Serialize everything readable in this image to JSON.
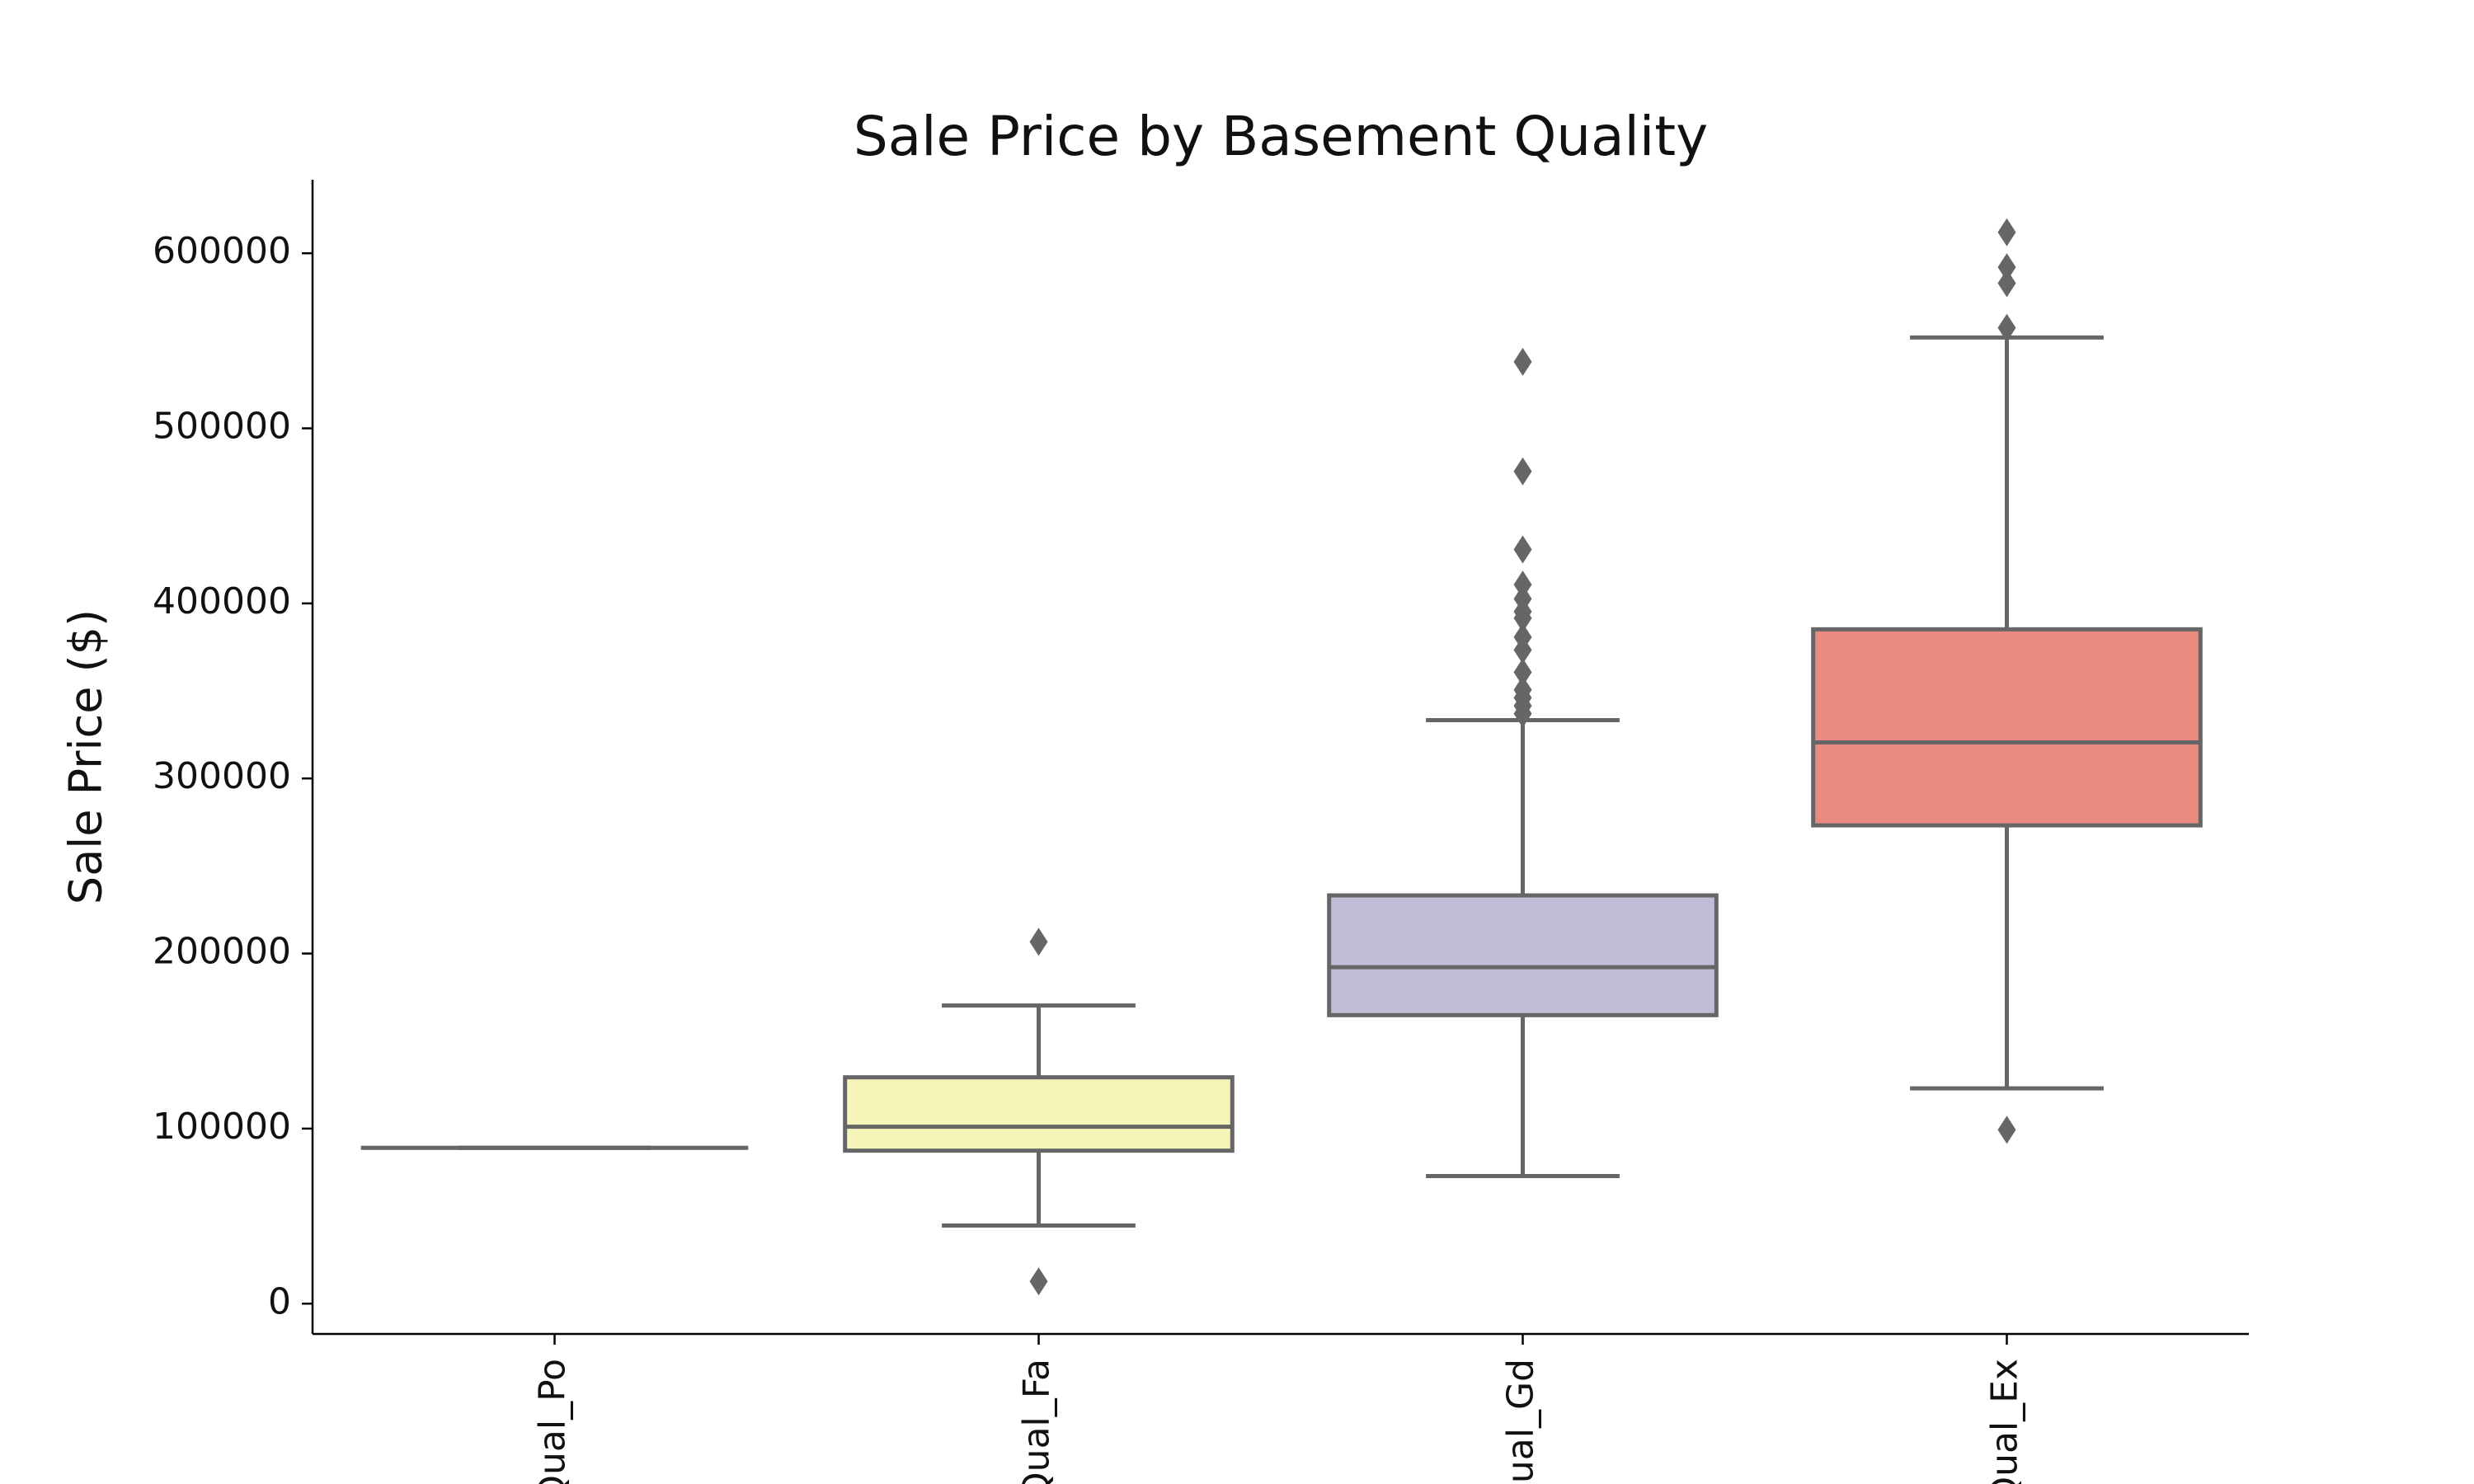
{
  "chart_data": {
    "type": "box",
    "title": "Sale Price by Basement Quality",
    "y_label": "Sale Price ($)",
    "categories": [
      "Qual_Po",
      "Qual_Fa",
      "Qual_Gd",
      "Qual_Ex"
    ],
    "boxes": [
      {
        "color": "#8ec8be",
        "whislo": 89000,
        "q1": 89000,
        "med": 89000,
        "q3": 89000,
        "whishi": 89000,
        "fliers": []
      },
      {
        "color": "#f6f5b9",
        "whislo": 44600,
        "q1": 87400,
        "med": 101100,
        "q3": 129300,
        "whishi": 170300,
        "fliers": [
          206700,
          12750
        ]
      },
      {
        "color": "#c0bdd8",
        "whislo": 72900,
        "q1": 164800,
        "med": 192200,
        "q3": 233200,
        "whishi": 333300,
        "fliers": [
          538000,
          475400,
          430800,
          410700,
          402600,
          395300,
          391600,
          380700,
          373400,
          360700,
          350600,
          346100,
          341500,
          337000
        ]
      },
      {
        "color": "#e98b80",
        "whislo": 123000,
        "q1": 273200,
        "med": 320600,
        "q3": 385200,
        "whishi": 551900,
        "fliers": [
          612000,
          592000,
          582900,
          557400,
          99300
        ]
      }
    ],
    "line_color": "#666666",
    "ylim": [
      -17300,
      642000
    ],
    "yticks": [
      0,
      100000,
      200000,
      300000,
      400000,
      500000,
      600000
    ]
  }
}
